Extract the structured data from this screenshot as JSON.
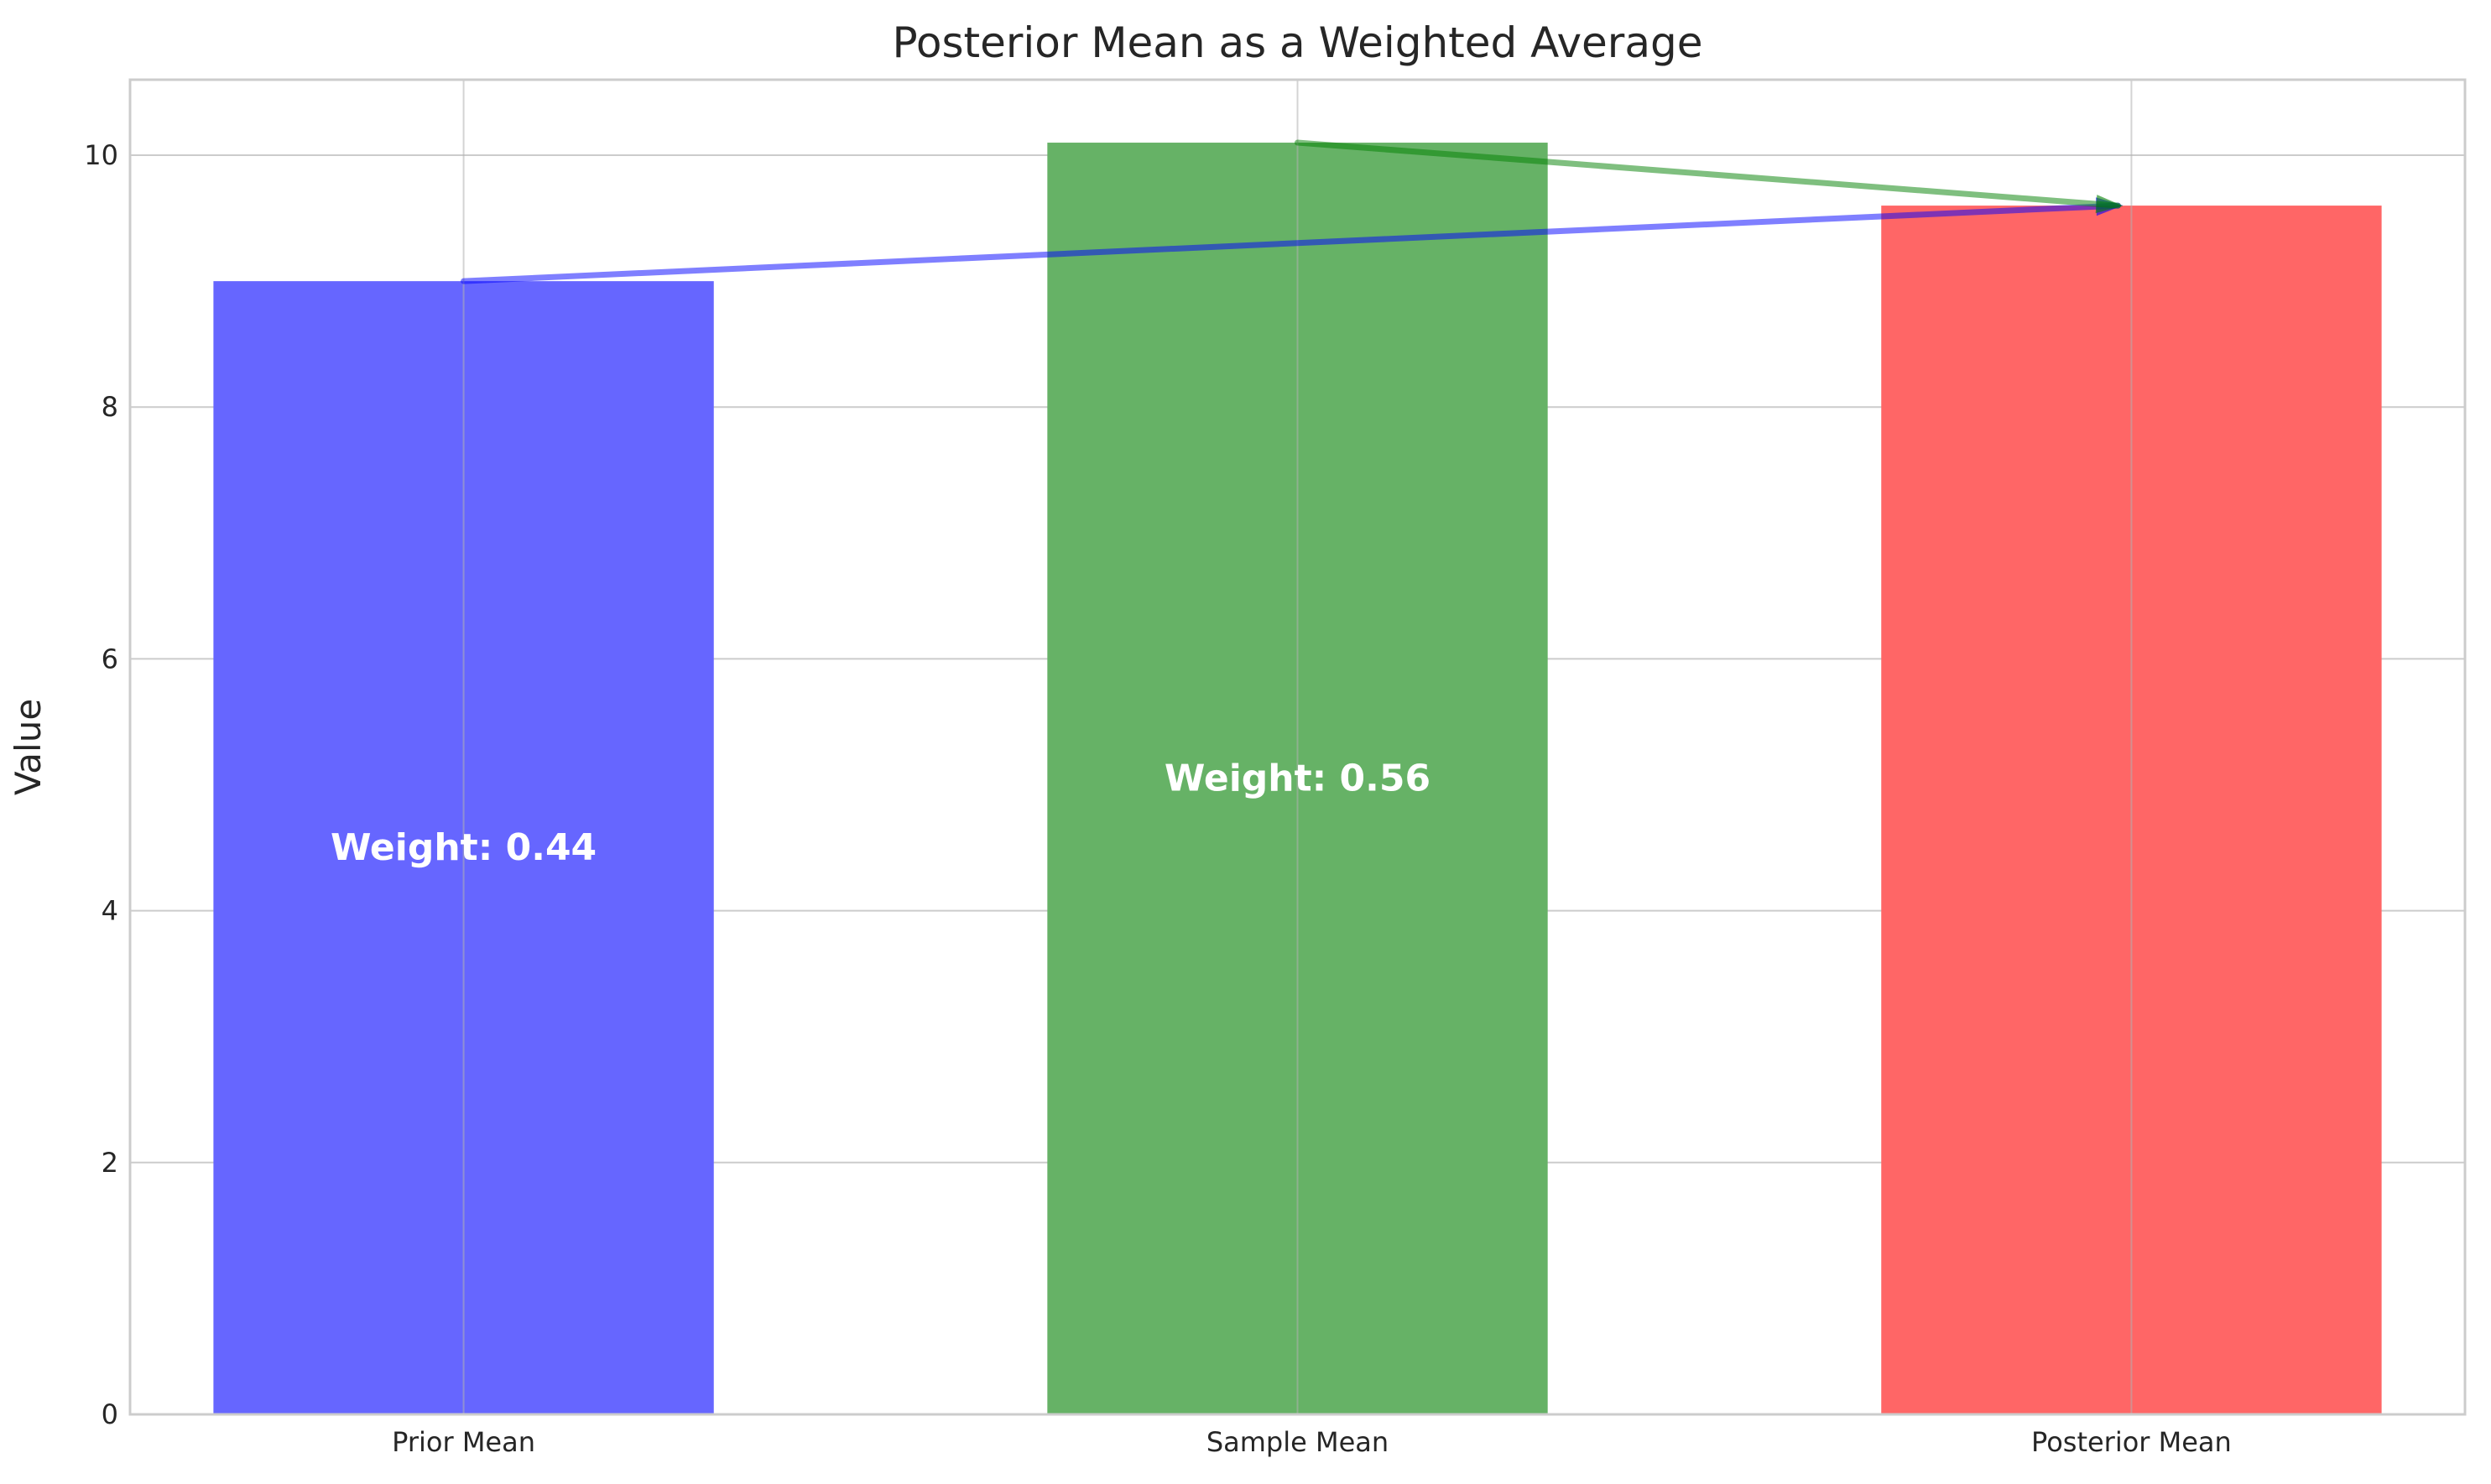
{
  "chart_data": {
    "type": "bar",
    "title": "Posterior Mean as a Weighted Average",
    "xlabel": "",
    "ylabel": "Value",
    "categories": [
      "Prior Mean",
      "Sample Mean",
      "Posterior Mean"
    ],
    "values": [
      9.0,
      10.1,
      9.6
    ],
    "colors": [
      "#6666ff",
      "#66b266",
      "#ff6666"
    ],
    "ylim": [
      0,
      10.6
    ],
    "yticks": [
      "0",
      "2",
      "4",
      "6",
      "8",
      "10"
    ],
    "grid": true,
    "annotations": [
      {
        "text": "Weight: 0.44",
        "category": "Prior Mean",
        "y": 4.5
      },
      {
        "text": "Weight: 0.56",
        "category": "Sample Mean",
        "y": 5.05
      }
    ],
    "arrows": [
      {
        "from_category": "Prior Mean",
        "from_value": 9.0,
        "to_category": "Posterior Mean",
        "to_value": 9.6,
        "color": "#0000ff"
      },
      {
        "from_category": "Sample Mean",
        "from_value": 10.1,
        "to_category": "Posterior Mean",
        "to_value": 9.6,
        "color": "#008000"
      }
    ]
  }
}
